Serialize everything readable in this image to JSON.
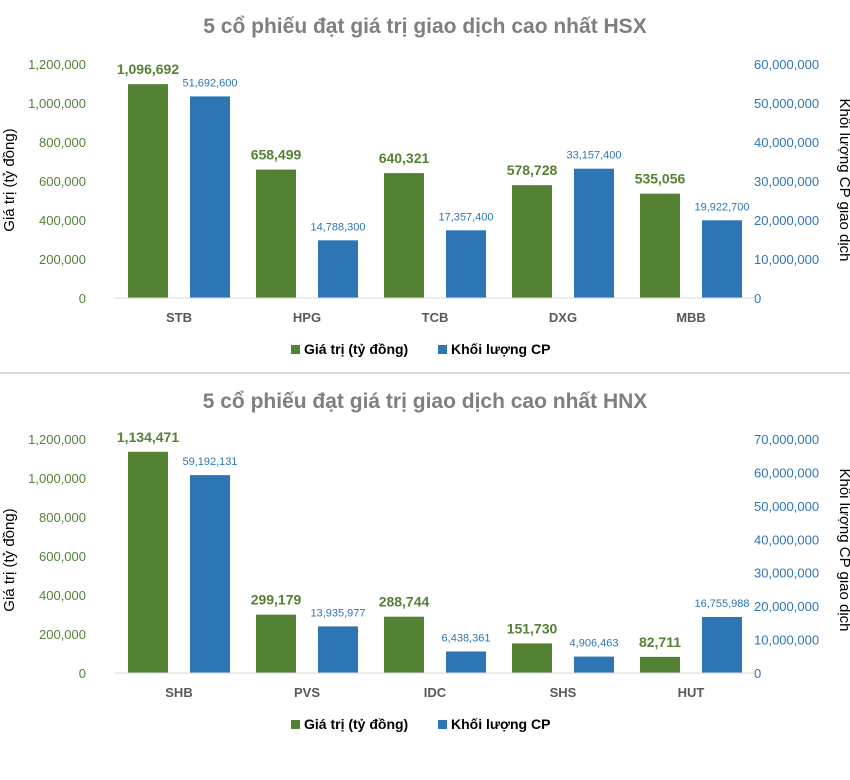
{
  "chart_data": [
    {
      "type": "bar",
      "title": "5 cổ phiếu đạt giá trị giao dịch cao nhất HSX",
      "categories": [
        "STB",
        "HPG",
        "TCB",
        "DXG",
        "MBB"
      ],
      "ylabel": "Giá trị (tỷ đồng)",
      "y2label": "Khối lượng CP giao dịch",
      "ylim": [
        0,
        1200000
      ],
      "y2lim": [
        0,
        60000000
      ],
      "yticks": [
        "0",
        "200,000",
        "400,000",
        "600,000",
        "800,000",
        "1,000,000",
        "1,200,000"
      ],
      "y2ticks": [
        "0",
        "10,000,000",
        "20,000,000",
        "30,000,000",
        "40,000,000",
        "50,000,000",
        "60,000,000"
      ],
      "series": [
        {
          "name": "Giá trị (tỷ đồng)",
          "axis": "left",
          "color": "#548235",
          "values": [
            1096692,
            658499,
            640321,
            578728,
            535056
          ],
          "labels": [
            "1,096,692",
            "658,499",
            "640,321",
            "578,728",
            "535,056"
          ]
        },
        {
          "name": "Khối lượng CP",
          "axis": "right",
          "color": "#2e75b6",
          "values": [
            51692600,
            14788300,
            17357400,
            33157400,
            19922700
          ],
          "labels": [
            "51,692,600",
            "14,788,300",
            "17,357,400",
            "33,157,400",
            "19,922,700"
          ]
        }
      ],
      "legend": "bottom",
      "grid": false
    },
    {
      "type": "bar",
      "title": "5 cổ phiếu đạt giá trị giao dịch cao nhất HNX",
      "categories": [
        "SHB",
        "PVS",
        "IDC",
        "SHS",
        "HUT"
      ],
      "ylabel": "Giá trị (tỷ đồng)",
      "y2label": "Khối lượng CP giao dịch",
      "ylim": [
        0,
        1200000
      ],
      "y2lim": [
        0,
        70000000
      ],
      "yticks": [
        "0",
        "200,000",
        "400,000",
        "600,000",
        "800,000",
        "1,000,000",
        "1,200,000"
      ],
      "y2ticks": [
        "0",
        "10,000,000",
        "20,000,000",
        "30,000,000",
        "40,000,000",
        "50,000,000",
        "60,000,000",
        "70,000,000"
      ],
      "series": [
        {
          "name": "Giá trị (tỷ đồng)",
          "axis": "left",
          "color": "#548235",
          "values": [
            1134471,
            299179,
            288744,
            151730,
            82711
          ],
          "labels": [
            "1,134,471",
            "299,179",
            "288,744",
            "151,730",
            "82,711"
          ]
        },
        {
          "name": "Khối lượng CP",
          "axis": "right",
          "color": "#2e75b6",
          "values": [
            59192131,
            13935977,
            6438361,
            4906463,
            16755988
          ],
          "labels": [
            "59,192,131",
            "13,935,977",
            "6,438,361",
            "4,906,463",
            "16,755,988"
          ]
        }
      ],
      "legend": "bottom",
      "grid": false
    }
  ]
}
